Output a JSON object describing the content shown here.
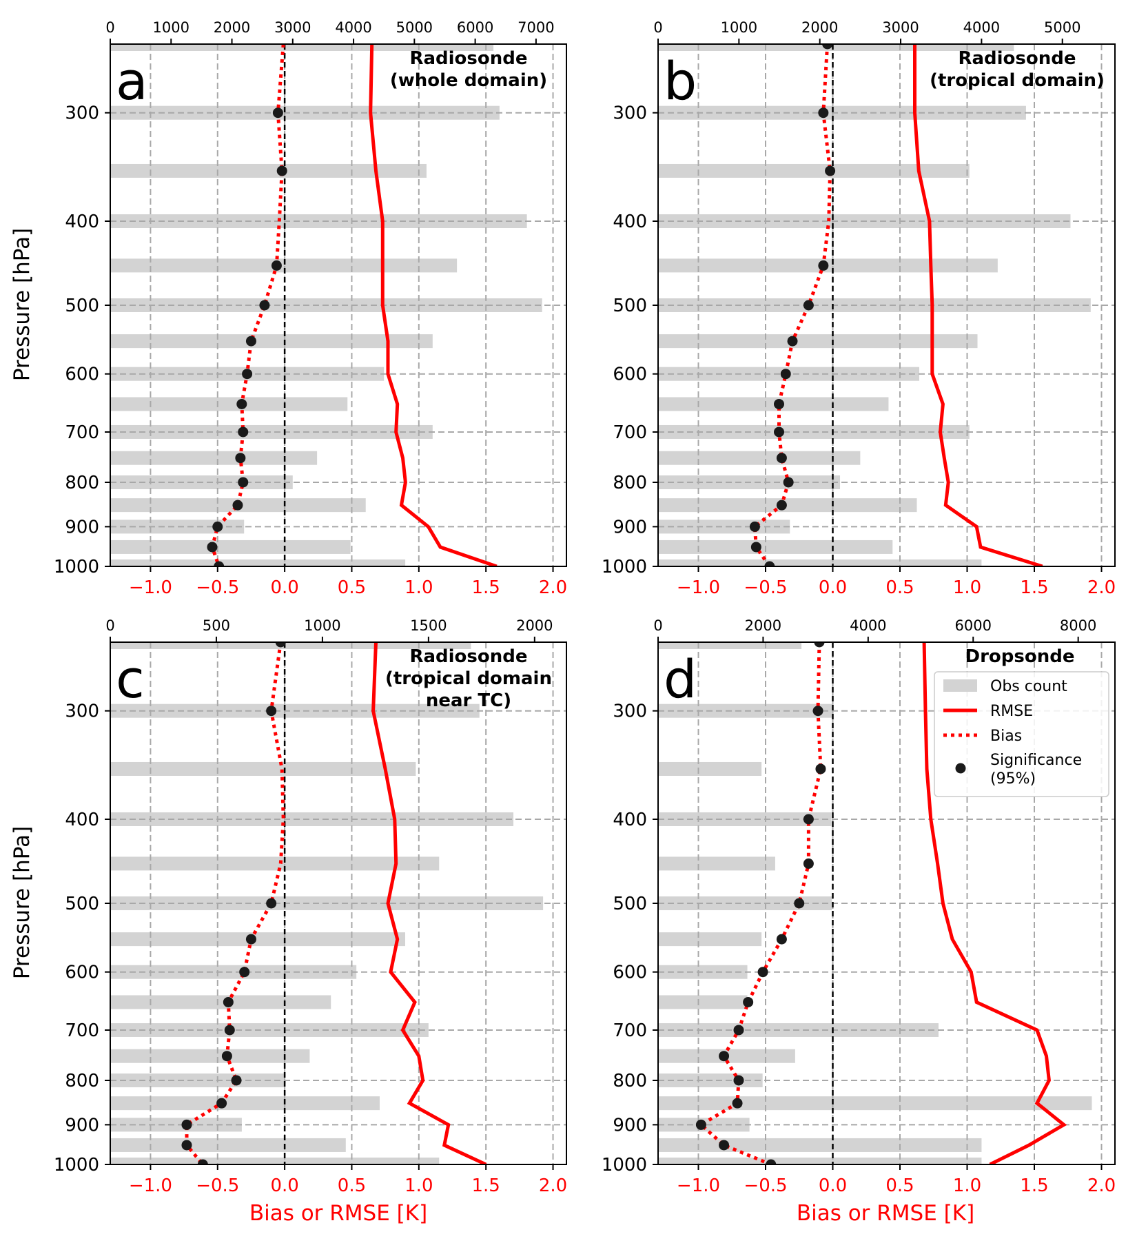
{
  "figure": {
    "ylabel": "Pressure [hPa]",
    "xlabel": "Bias or RMSE [K]",
    "colors": {
      "bar": "#d3d3d3",
      "rmse": "#ff0000",
      "bias": "#ff0000",
      "sig": "#1a1a1a",
      "grid": "#a8a8a8",
      "zero": "#000000",
      "bottom_ticks": "#ff0000"
    },
    "legend": {
      "items": [
        "Obs count",
        "RMSE",
        "Bias",
        "Significance",
        "(95%)"
      ]
    }
  },
  "chart_data": [
    {
      "type": "bar+line",
      "panel_label": "a",
      "title_lines": [
        "Radiosonde",
        "(whole domain)"
      ],
      "pressure_levels": [
        250,
        300,
        350,
        400,
        450,
        500,
        550,
        600,
        650,
        700,
        750,
        800,
        850,
        900,
        950,
        1000
      ],
      "yticks": [
        300,
        400,
        500,
        600,
        700,
        800,
        900,
        1000
      ],
      "ylim": [
        250,
        1000
      ],
      "xlim": [
        -1.3,
        2.1
      ],
      "xticks": [
        -1.0,
        -0.5,
        0.0,
        0.5,
        1.0,
        1.5,
        2.0
      ],
      "xtick_labels": [
        "−1.0",
        "−0.5",
        "0.0",
        "0.5",
        "1.0",
        "1.5",
        "2.0"
      ],
      "top_xlim": [
        0,
        7500
      ],
      "top_xticks": [
        0,
        1000,
        2000,
        3000,
        4000,
        5000,
        6000,
        7000
      ],
      "obs_count": [
        6300,
        6400,
        5200,
        6850,
        5700,
        7100,
        5300,
        4500,
        3900,
        5300,
        3400,
        3000,
        4200,
        2200,
        3950,
        4850
      ],
      "rmse": [
        0.65,
        0.64,
        0.68,
        0.73,
        0.73,
        0.73,
        0.77,
        0.77,
        0.84,
        0.83,
        0.88,
        0.9,
        0.87,
        1.07,
        1.16,
        1.58
      ],
      "bias": [
        -0.01,
        -0.05,
        -0.02,
        -0.04,
        -0.06,
        -0.15,
        -0.25,
        -0.28,
        -0.32,
        -0.31,
        -0.33,
        -0.31,
        -0.35,
        -0.5,
        -0.54,
        -0.49
      ],
      "significant": [
        false,
        true,
        true,
        false,
        true,
        true,
        true,
        true,
        true,
        true,
        true,
        true,
        true,
        true,
        true,
        true
      ]
    },
    {
      "type": "bar+line",
      "panel_label": "b",
      "title_lines": [
        "Radiosonde",
        "(tropical domain)"
      ],
      "pressure_levels": [
        250,
        300,
        350,
        400,
        450,
        500,
        550,
        600,
        650,
        700,
        750,
        800,
        850,
        900,
        950,
        1000
      ],
      "yticks": [
        300,
        400,
        500,
        600,
        700,
        800,
        900,
        1000
      ],
      "ylim": [
        250,
        1000
      ],
      "xlim": [
        -1.3,
        2.1
      ],
      "xticks": [
        -1.0,
        -0.5,
        0.0,
        0.5,
        1.0,
        1.5,
        2.0
      ],
      "xtick_labels": [
        "−1.0",
        "−0.5",
        "0.0",
        "0.5",
        "1.0",
        "1.5",
        "2.0"
      ],
      "top_xlim": [
        0,
        5650
      ],
      "top_xticks": [
        0,
        1000,
        2000,
        3000,
        4000,
        5000
      ],
      "obs_count": [
        4400,
        4550,
        3850,
        5100,
        4200,
        5350,
        3950,
        3230,
        2850,
        3850,
        2500,
        2250,
        3200,
        1630,
        2900,
        4000
      ],
      "rmse": [
        0.61,
        0.61,
        0.64,
        0.72,
        0.73,
        0.74,
        0.74,
        0.74,
        0.82,
        0.8,
        0.83,
        0.86,
        0.84,
        1.07,
        1.1,
        1.56
      ],
      "bias": [
        -0.04,
        -0.07,
        -0.02,
        -0.03,
        -0.07,
        -0.18,
        -0.3,
        -0.35,
        -0.4,
        -0.4,
        -0.38,
        -0.33,
        -0.38,
        -0.58,
        -0.57,
        -0.47
      ],
      "significant": [
        true,
        true,
        true,
        false,
        true,
        true,
        true,
        true,
        true,
        true,
        true,
        true,
        true,
        true,
        true,
        true
      ]
    },
    {
      "type": "bar+line",
      "panel_label": "c",
      "title_lines": [
        "Radiosonde",
        "(tropical domain",
        "near TC)"
      ],
      "pressure_levels": [
        250,
        300,
        350,
        400,
        450,
        500,
        550,
        600,
        650,
        700,
        750,
        800,
        850,
        900,
        950,
        1000
      ],
      "yticks": [
        300,
        400,
        500,
        600,
        700,
        800,
        900,
        1000
      ],
      "ylim": [
        250,
        1000
      ],
      "xlim": [
        -1.3,
        2.1
      ],
      "xticks": [
        -1.0,
        -0.5,
        0.0,
        0.5,
        1.0,
        1.5,
        2.0
      ],
      "xtick_labels": [
        "−1.0",
        "−0.5",
        "0.0",
        "0.5",
        "1.0",
        "1.5",
        "2.0"
      ],
      "top_xlim": [
        0,
        2150
      ],
      "top_xticks": [
        0,
        500,
        1000,
        1500,
        2000
      ],
      "obs_count": [
        1700,
        1740,
        1440,
        1900,
        1550,
        2040,
        1390,
        1160,
        1040,
        1500,
        940,
        820,
        1270,
        620,
        1110,
        1550
      ],
      "rmse": [
        0.68,
        0.66,
        0.75,
        0.82,
        0.83,
        0.77,
        0.84,
        0.79,
        0.97,
        0.88,
        1.0,
        1.03,
        0.93,
        1.22,
        1.19,
        1.5
      ],
      "bias": [
        -0.03,
        -0.1,
        -0.02,
        -0.01,
        -0.03,
        -0.1,
        -0.25,
        -0.3,
        -0.42,
        -0.41,
        -0.43,
        -0.36,
        -0.47,
        -0.73,
        -0.73,
        -0.61
      ],
      "significant": [
        true,
        true,
        false,
        false,
        false,
        true,
        true,
        true,
        true,
        true,
        true,
        true,
        true,
        true,
        true,
        true
      ]
    },
    {
      "type": "bar+line",
      "panel_label": "d",
      "title_lines": [
        "Dropsonde"
      ],
      "pressure_levels": [
        250,
        300,
        350,
        400,
        450,
        500,
        550,
        600,
        650,
        700,
        750,
        800,
        850,
        900,
        950,
        1000
      ],
      "yticks": [
        300,
        400,
        500,
        600,
        700,
        800,
        900,
        1000
      ],
      "ylim": [
        250,
        1000
      ],
      "xlim": [
        -1.3,
        2.1
      ],
      "xticks": [
        -1.0,
        -0.5,
        0.0,
        0.5,
        1.0,
        1.5,
        2.0
      ],
      "xtick_labels": [
        "−1.0",
        "−0.5",
        "0.0",
        "0.5",
        "1.0",
        "1.5",
        "2.0"
      ],
      "top_xlim": [
        0,
        8700
      ],
      "top_xticks": [
        0,
        2000,
        4000,
        6000,
        8000
      ],
      "obs_count": [
        2730,
        3310,
        1970,
        3300,
        2230,
        3310,
        1970,
        1700,
        1700,
        5340,
        2610,
        1990,
        8260,
        1740,
        6160,
        6160
      ],
      "rmse": [
        0.68,
        0.69,
        0.7,
        0.73,
        0.78,
        0.82,
        0.89,
        1.03,
        1.07,
        1.52,
        1.59,
        1.61,
        1.52,
        1.72,
        1.46,
        1.17
      ],
      "bias": [
        -0.1,
        -0.11,
        -0.09,
        -0.18,
        -0.18,
        -0.25,
        -0.38,
        -0.52,
        -0.63,
        -0.7,
        -0.81,
        -0.7,
        -0.71,
        -0.98,
        -0.81,
        -0.46
      ],
      "significant": [
        true,
        true,
        true,
        true,
        true,
        true,
        true,
        true,
        true,
        true,
        true,
        true,
        true,
        true,
        true,
        true
      ]
    }
  ]
}
